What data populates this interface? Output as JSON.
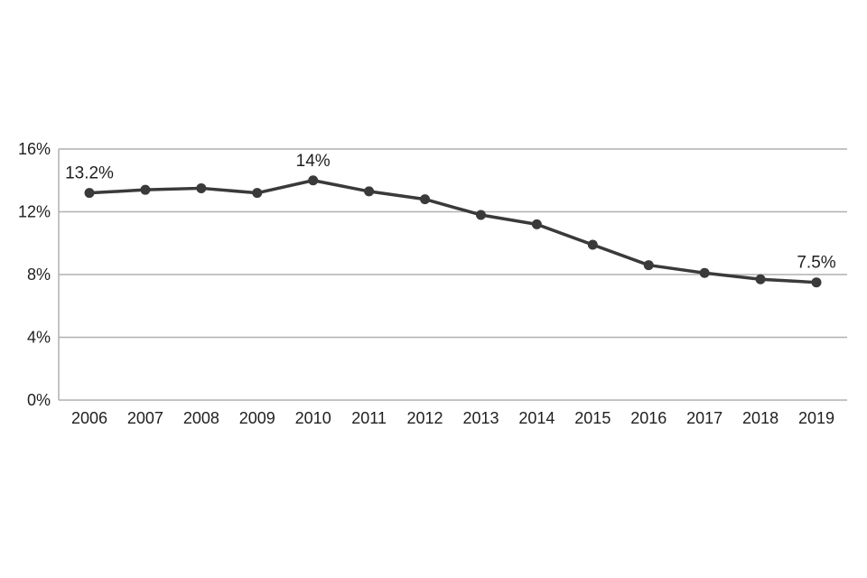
{
  "chart_data": {
    "type": "line",
    "title": "",
    "xlabel": "",
    "ylabel": "",
    "categories": [
      "2006",
      "2007",
      "2008",
      "2009",
      "2010",
      "2011",
      "2012",
      "2013",
      "2014",
      "2015",
      "2016",
      "2017",
      "2018",
      "2019"
    ],
    "series": [
      {
        "name": "percentage",
        "values": [
          13.2,
          13.4,
          13.5,
          13.2,
          14.0,
          13.3,
          12.8,
          11.8,
          11.2,
          9.9,
          8.6,
          8.1,
          7.7,
          7.5
        ]
      }
    ],
    "ylim": [
      0,
      16
    ],
    "ytick_step": 4,
    "ytick_labels": [
      "0%",
      "4%",
      "8%",
      "12%",
      "16%"
    ],
    "grid": true,
    "legend": "none",
    "annotations": [
      {
        "category": "2006",
        "text": "13.2%"
      },
      {
        "category": "2010",
        "text": "14%"
      },
      {
        "category": "2019",
        "text": "7.5%"
      }
    ],
    "colors": {
      "line": "#3a3a3a",
      "marker": "#3a3a3a",
      "grid": "#b0b0b0",
      "axis": "#b0b0b0",
      "text": "#1f1f1f",
      "background": "#ffffff"
    }
  }
}
